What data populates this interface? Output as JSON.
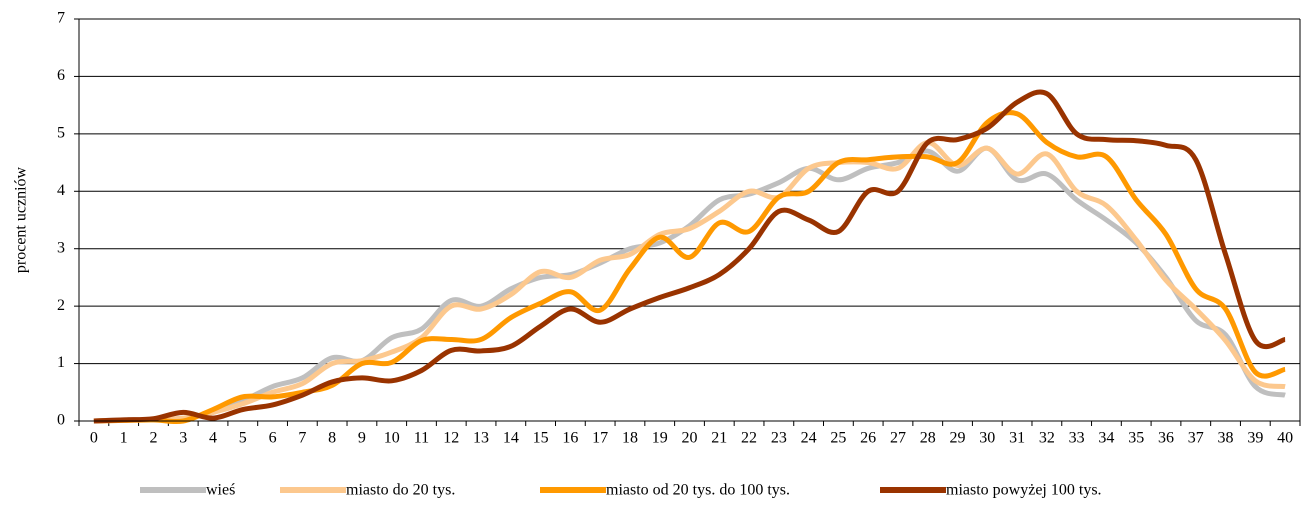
{
  "chart_data": {
    "type": "line",
    "y_label": "procent uczniów",
    "categories": [
      0,
      1,
      2,
      3,
      4,
      5,
      6,
      7,
      8,
      9,
      10,
      11,
      12,
      13,
      14,
      15,
      16,
      17,
      18,
      19,
      20,
      21,
      22,
      23,
      24,
      25,
      26,
      27,
      28,
      29,
      30,
      31,
      32,
      33,
      34,
      35,
      36,
      37,
      38,
      39,
      40
    ],
    "ylim": [
      0,
      7
    ],
    "yticks": [
      0,
      1,
      2,
      3,
      4,
      5,
      6,
      7
    ],
    "grid": true,
    "legend": "bottom",
    "series": [
      {
        "name": "wieś",
        "color": "#bfbfbf",
        "values": [
          0,
          0.02,
          0.02,
          0.05,
          0.15,
          0.35,
          0.6,
          0.75,
          1.1,
          1.05,
          1.45,
          1.6,
          2.1,
          2.0,
          2.3,
          2.5,
          2.55,
          2.75,
          3.0,
          3.1,
          3.4,
          3.85,
          3.95,
          4.15,
          4.4,
          4.2,
          4.4,
          4.5,
          4.7,
          4.35,
          4.75,
          4.2,
          4.3,
          3.85,
          3.5,
          3.1,
          2.5,
          1.75,
          1.5,
          0.6,
          0.45
        ]
      },
      {
        "name": "miasto do 20 tys.",
        "color": "#fcc88e",
        "values": [
          0,
          0.01,
          0.02,
          0.05,
          0.15,
          0.3,
          0.5,
          0.65,
          1.0,
          1.05,
          1.2,
          1.45,
          2.0,
          1.95,
          2.2,
          2.6,
          2.5,
          2.8,
          2.9,
          3.25,
          3.35,
          3.65,
          4.0,
          3.9,
          4.4,
          4.5,
          4.5,
          4.4,
          4.85,
          4.45,
          4.75,
          4.3,
          4.65,
          4.0,
          3.75,
          3.15,
          2.45,
          1.95,
          1.4,
          0.7,
          0.6
        ]
      },
      {
        "name": "miasto od 20 tys. do 100 tys.",
        "color": "#ff9900",
        "values": [
          0,
          0.01,
          0.02,
          0.0,
          0.2,
          0.42,
          0.42,
          0.5,
          0.62,
          1.0,
          1.02,
          1.4,
          1.42,
          1.42,
          1.8,
          2.05,
          2.25,
          1.93,
          2.65,
          3.2,
          2.85,
          3.45,
          3.3,
          3.9,
          4.0,
          4.5,
          4.55,
          4.6,
          4.6,
          4.5,
          5.2,
          5.35,
          4.85,
          4.6,
          4.6,
          3.85,
          3.25,
          2.3,
          1.95,
          0.85,
          0.9
        ]
      },
      {
        "name": "miasto powyżej 100 tys.",
        "color": "#993300",
        "values": [
          0,
          0.02,
          0.04,
          0.15,
          0.05,
          0.2,
          0.28,
          0.45,
          0.68,
          0.75,
          0.7,
          0.88,
          1.23,
          1.22,
          1.3,
          1.65,
          1.95,
          1.72,
          1.95,
          2.15,
          2.32,
          2.55,
          3.0,
          3.65,
          3.5,
          3.3,
          4.0,
          4.0,
          4.85,
          4.9,
          5.1,
          5.55,
          5.7,
          5.0,
          4.9,
          4.88,
          4.8,
          4.55,
          2.9,
          1.4,
          1.42
        ]
      }
    ]
  }
}
